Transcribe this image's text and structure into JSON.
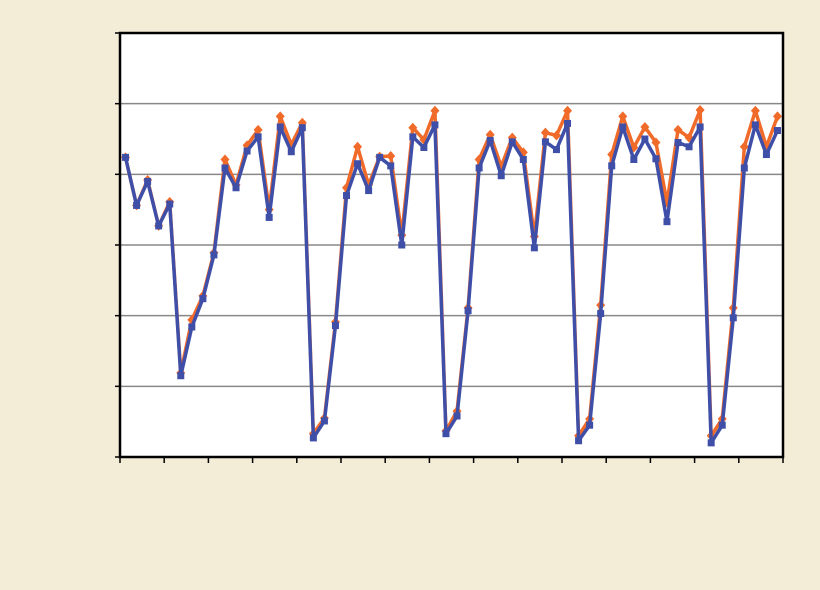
{
  "chart_data": {
    "type": "line",
    "x": [
      1,
      2,
      3,
      4,
      5,
      6,
      7,
      8,
      9,
      10,
      11,
      12,
      13,
      14,
      15,
      16,
      17,
      18,
      19,
      20,
      21,
      22,
      23,
      24,
      25,
      26,
      27,
      28,
      29,
      30,
      31,
      32,
      33,
      34,
      35,
      36,
      37,
      38,
      39,
      40,
      41,
      42,
      43,
      44,
      45,
      46,
      47,
      48,
      49,
      50,
      51,
      52,
      53,
      54,
      55,
      56,
      57,
      58,
      59,
      60
    ],
    "series": [
      {
        "color": "#f06a2a",
        "marker": "diamond",
        "values": [
          4.24,
          3.56,
          3.92,
          3.27,
          3.61,
          1.19,
          1.94,
          2.28,
          2.89,
          4.21,
          3.85,
          4.41,
          4.63,
          3.5,
          4.82,
          4.42,
          4.73,
          0.33,
          0.55,
          1.91,
          3.81,
          4.39,
          3.85,
          4.25,
          4.26,
          3.14,
          4.66,
          4.49,
          4.9,
          0.37,
          0.65,
          2.11,
          4.21,
          4.56,
          4.11,
          4.52,
          4.31,
          3.12,
          4.59,
          4.55,
          4.9,
          0.3,
          0.54,
          2.15,
          4.28,
          4.82,
          4.38,
          4.67,
          4.45,
          3.6,
          4.63,
          4.52,
          4.91,
          0.3,
          0.54,
          2.11,
          4.39,
          4.9,
          4.39,
          4.82
        ]
      },
      {
        "color": "#3f4fa8",
        "marker": "square",
        "values": [
          4.24,
          3.56,
          3.9,
          3.27,
          3.58,
          1.15,
          1.84,
          2.24,
          2.86,
          4.09,
          3.81,
          4.33,
          4.53,
          3.39,
          4.67,
          4.32,
          4.66,
          0.27,
          0.51,
          1.86,
          3.7,
          4.15,
          3.77,
          4.24,
          4.12,
          3.0,
          4.53,
          4.38,
          4.7,
          0.33,
          0.58,
          2.07,
          4.09,
          4.48,
          3.98,
          4.46,
          4.21,
          2.96,
          4.46,
          4.35,
          4.72,
          0.23,
          0.45,
          2.03,
          4.12,
          4.67,
          4.21,
          4.5,
          4.22,
          3.33,
          4.45,
          4.39,
          4.67,
          0.2,
          0.45,
          1.97,
          4.09,
          4.7,
          4.28,
          4.62
        ]
      }
    ],
    "xlim": [
      0.5,
      60.5
    ],
    "xticks": [
      0.5,
      4.5,
      8.5,
      12.5,
      16.5,
      20.5,
      24.5,
      28.5,
      32.5,
      36.5,
      40.5,
      44.5,
      48.5,
      52.5,
      56.5,
      60.5
    ],
    "ylim": [
      0,
      6
    ],
    "yticks": [
      0,
      1,
      2,
      3,
      4,
      5,
      6
    ],
    "grid": true
  }
}
